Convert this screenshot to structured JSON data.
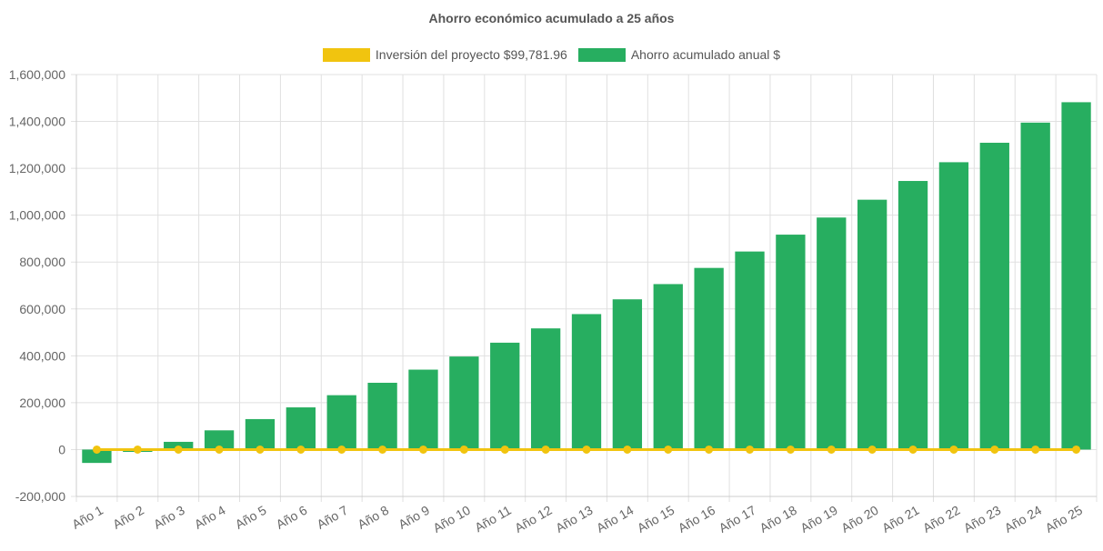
{
  "chart_data": {
    "type": "bar",
    "title": "Ahorro económico acumulado a 25 años",
    "categories": [
      "Año 1",
      "Año 2",
      "Año 3",
      "Año 4",
      "Año 5",
      "Año 6",
      "Año 7",
      "Año 8",
      "Año 9",
      "Año 10",
      "Año 11",
      "Año 12",
      "Año 13",
      "Año 14",
      "Año 15",
      "Año 16",
      "Año 17",
      "Año 18",
      "Año 19",
      "Año 20",
      "Año 21",
      "Año 22",
      "Año 23",
      "Año 24",
      "Año 25"
    ],
    "series": [
      {
        "name": "Inversión del proyecto $99,781.96",
        "type": "line",
        "color": "#f1c40f",
        "values": [
          0,
          0,
          0,
          0,
          0,
          0,
          0,
          0,
          0,
          0,
          0,
          0,
          0,
          0,
          0,
          0,
          0,
          0,
          0,
          0,
          0,
          0,
          0,
          0,
          0
        ]
      },
      {
        "name": "Ahorro acumulado anual $",
        "type": "bar",
        "color": "#27ae60",
        "values": [
          -57000,
          -10000,
          33000,
          82000,
          130000,
          180000,
          232000,
          285000,
          341000,
          397000,
          456000,
          517000,
          578000,
          641000,
          706000,
          775000,
          845000,
          917000,
          990000,
          1066000,
          1146000,
          1226000,
          1309000,
          1395000,
          1482000
        ]
      }
    ],
    "yticks": [
      "1,600,000",
      "1,400,000",
      "1,200,000",
      "1,000,000",
      "800,000",
      "600,000",
      "400,000",
      "200,000",
      "0",
      "-200,000"
    ],
    "ylim": [
      -200000,
      1600000
    ],
    "grid": true,
    "legend_position": "top"
  }
}
